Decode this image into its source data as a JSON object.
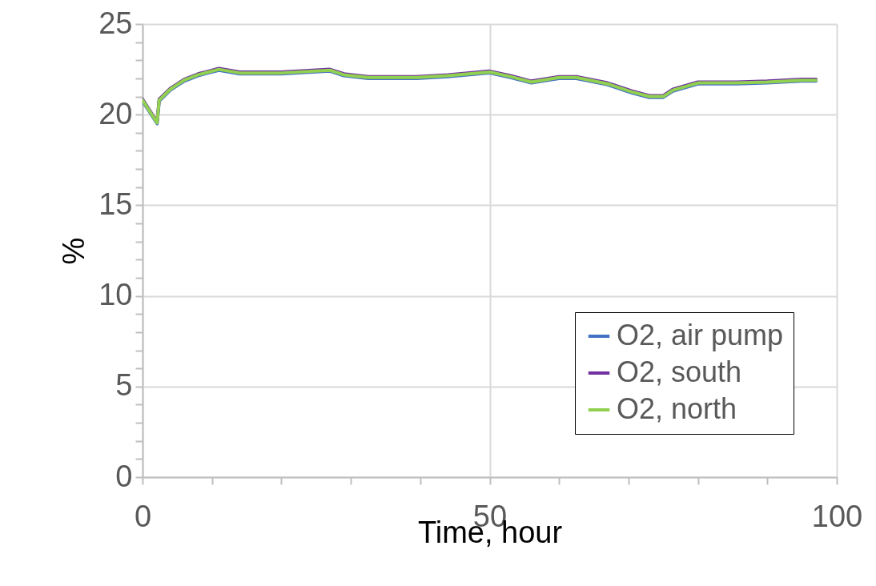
{
  "chart_data": {
    "type": "line",
    "xlabel": "Time, hour",
    "ylabel": "%",
    "xlim": [
      0,
      100
    ],
    "ylim": [
      0,
      25
    ],
    "xticks": [
      0,
      {
        "value": 10,
        "label": null
      },
      {
        "value": 20,
        "label": null
      },
      {
        "value": 30,
        "label": null
      },
      {
        "value": 40,
        "label": null
      },
      50,
      {
        "value": 60,
        "label": null
      },
      {
        "value": 70,
        "label": null
      },
      {
        "value": 80,
        "label": null
      },
      {
        "value": 90,
        "label": null
      },
      100
    ],
    "yticks": [
      0,
      {
        "value": 1,
        "label": null
      },
      {
        "value": 2,
        "label": null
      },
      {
        "value": 3,
        "label": null
      },
      {
        "value": 4,
        "label": null
      },
      5,
      {
        "value": 6,
        "label": null
      },
      {
        "value": 7,
        "label": null
      },
      {
        "value": 8,
        "label": null
      },
      {
        "value": 9,
        "label": null
      },
      10,
      {
        "value": 11,
        "label": null
      },
      {
        "value": 12,
        "label": null
      },
      {
        "value": 13,
        "label": null
      },
      {
        "value": 14,
        "label": null
      },
      15,
      {
        "value": 16,
        "label": null
      },
      {
        "value": 17,
        "label": null
      },
      {
        "value": 18,
        "label": null
      },
      {
        "value": 19,
        "label": null
      },
      20,
      {
        "value": 21,
        "label": null
      },
      {
        "value": 22,
        "label": null
      },
      {
        "value": 23,
        "label": null
      },
      {
        "value": 24,
        "label": null
      },
      25
    ],
    "grid": true,
    "legend": "bottom right",
    "marker": "none",
    "line_style": "solid",
    "x": [
      0,
      2.1,
      2.4,
      4,
      6,
      8,
      9.5,
      11,
      14,
      20,
      27,
      29,
      32.5,
      39.5,
      44,
      50,
      53,
      56,
      60,
      62.5,
      67,
      70.5,
      73,
      75,
      76.4,
      80,
      85.6,
      90,
      95,
      97
    ],
    "series": [
      {
        "name": "O2, air pump",
        "color": "#4472c4",
        "values": [
          20.75,
          19.5,
          20.75,
          21.35,
          21.85,
          22.15,
          22.3,
          22.45,
          22.25,
          22.25,
          22.4,
          22.15,
          22.0,
          22.0,
          22.1,
          22.3,
          22.05,
          21.75,
          22.0,
          22.0,
          21.65,
          21.2,
          20.95,
          20.95,
          21.3,
          21.7,
          21.7,
          21.75,
          21.85,
          21.85
        ]
      },
      {
        "name": "O2, south",
        "color": "#7030a0",
        "values": [
          20.85,
          19.6,
          20.85,
          21.45,
          21.95,
          22.25,
          22.4,
          22.55,
          22.35,
          22.35,
          22.5,
          22.25,
          22.1,
          22.1,
          22.2,
          22.4,
          22.15,
          21.85,
          22.1,
          22.1,
          21.75,
          21.3,
          21.05,
          21.05,
          21.4,
          21.8,
          21.8,
          21.85,
          21.95,
          21.95
        ]
      },
      {
        "name": "O2, north",
        "color": "#92d050",
        "values": [
          20.8,
          19.55,
          20.8,
          21.4,
          21.9,
          22.2,
          22.35,
          22.5,
          22.3,
          22.3,
          22.45,
          22.2,
          22.05,
          22.05,
          22.15,
          22.35,
          22.1,
          21.8,
          22.05,
          22.05,
          21.7,
          21.25,
          21.0,
          21.0,
          21.35,
          21.75,
          21.75,
          21.8,
          21.9,
          21.9
        ]
      }
    ]
  }
}
